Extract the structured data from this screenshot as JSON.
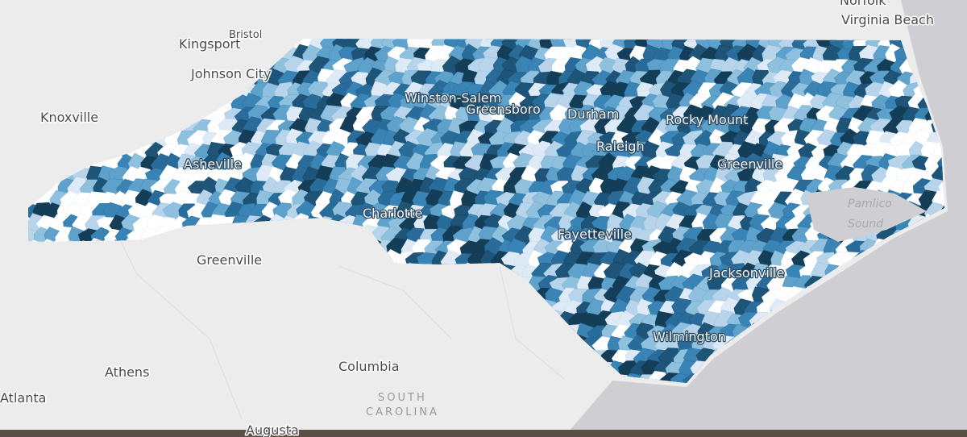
{
  "map": {
    "cities": [
      "Norfolk",
      "Virginia Beach",
      "Bristol",
      "Kingsport",
      "Johnson City",
      "Knoxville",
      "Winston-Salem",
      "Greensboro",
      "Durham",
      "Rocky Mount",
      "Raleigh",
      "Greenville",
      "Asheville",
      "Charlotte",
      "Fayetteville",
      "Greenville",
      "Jacksonville",
      "Wilmington",
      "Athens",
      "Columbia",
      "Atlanta",
      "Augusta"
    ],
    "regions": [
      "SOUTH",
      "CAROLINA"
    ],
    "water": [
      "Pamlico",
      "Sound"
    ]
  }
}
